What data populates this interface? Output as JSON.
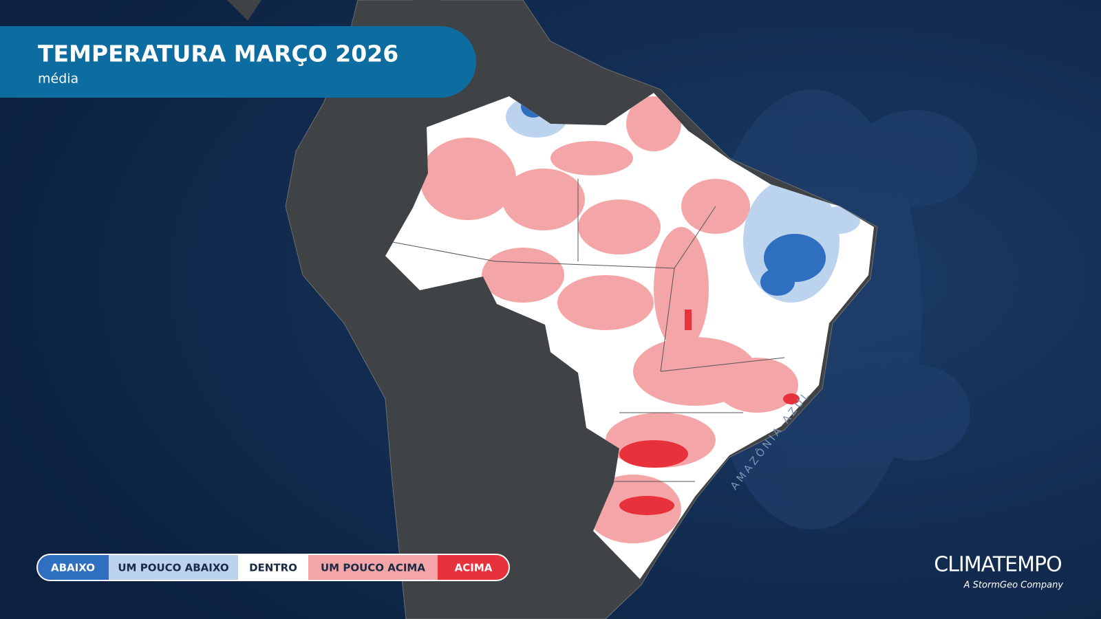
{
  "header": {
    "title": "TEMPERATURA MARÇO 2026",
    "subtitle": "média"
  },
  "legend": {
    "items": [
      {
        "label": "ABAIXO",
        "color": "#2f6fbf",
        "text_color": "#ffffff"
      },
      {
        "label": "UM POUCO ABAIXO",
        "color": "#bcd3ee",
        "text_color": "#1b2a44"
      },
      {
        "label": "DENTRO",
        "color": "#ffffff",
        "text_color": "#1b2a44"
      },
      {
        "label": "UM POUCO ACIMA",
        "color": "#f4a5a8",
        "text_color": "#1b2a44"
      },
      {
        "label": "ACIMA",
        "color": "#e8323b",
        "text_color": "#ffffff"
      }
    ]
  },
  "map_labels": {
    "ocean": "AMAZÔNIA AZUL"
  },
  "brand": {
    "name": "CLIMATEMPO",
    "tagline": "A StormGeo Company"
  }
}
